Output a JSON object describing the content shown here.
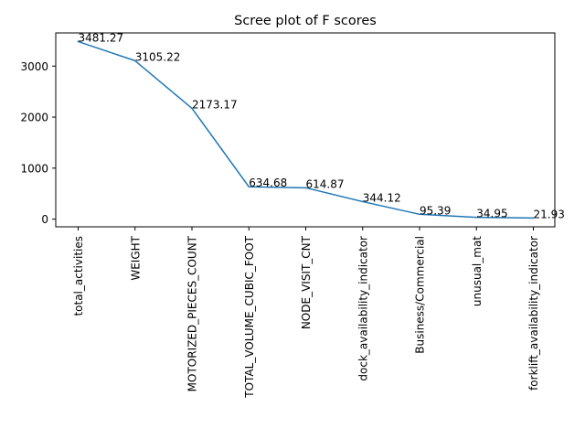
{
  "chart_data": {
    "type": "line",
    "title": "Scree plot of F scores",
    "xlabel": "",
    "ylabel": "",
    "categories": [
      "total_activities",
      "WEIGHT",
      "MOTORIZED_PIECES_COUNT",
      "TOTAL_VOLUME_CUBIC_FOOT",
      "NODE_VISIT_CNT",
      "dock_availability_indicator",
      "Business/Commercial",
      "unusual_mat",
      "forklift_availability_indicator"
    ],
    "values": [
      3481.27,
      3105.22,
      2173.17,
      634.68,
      614.87,
      344.12,
      95.39,
      34.95,
      21.93
    ],
    "data_labels": [
      "3481.27",
      "3105.22",
      "2173.17",
      "634.68",
      "614.87",
      "344.12",
      "95.39",
      "34.95",
      "21.93"
    ],
    "ylim": [
      -150,
      3650
    ],
    "yticks": [
      0,
      1000,
      2000,
      3000
    ],
    "grid": false,
    "line_color": "#1f77b4"
  }
}
